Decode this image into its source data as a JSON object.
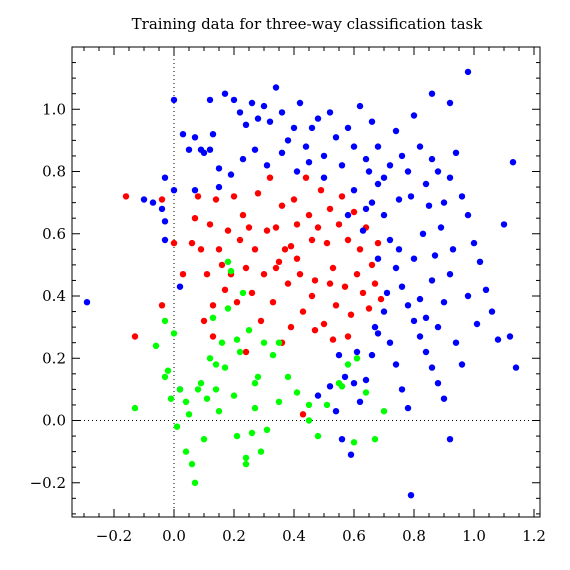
{
  "chart_data": {
    "type": "scatter",
    "title": "Training data for three-way classification task",
    "xlabel": "",
    "ylabel": "",
    "xlim": [
      -0.34,
      1.22
    ],
    "ylim": [
      -0.31,
      1.2
    ],
    "x_ticks": [
      -0.2,
      0.0,
      0.2,
      0.4,
      0.6,
      0.8,
      1.0,
      1.2
    ],
    "x_tick_labels": [
      "−0.2",
      "0.0",
      "0.2",
      "0.4",
      "0.6",
      "0.8",
      "1.0",
      "1.2"
    ],
    "y_ticks": [
      -0.2,
      0.0,
      0.2,
      0.4,
      0.6,
      0.8,
      1.0
    ],
    "y_tick_labels": [
      "−0.2",
      "0.0",
      "0.2",
      "0.4",
      "0.6",
      "0.8",
      "1.0"
    ],
    "grid": false,
    "zero_lines": "dotted",
    "legend": "none",
    "series": [
      {
        "color": "#ff0000",
        "points": [
          [
            -0.16,
            0.72
          ],
          [
            -0.13,
            0.27
          ],
          [
            -0.04,
            0.71
          ],
          [
            -0.04,
            0.37
          ],
          [
            0.0,
            0.57
          ],
          [
            0.03,
            0.47
          ],
          [
            0.06,
            0.57
          ],
          [
            0.07,
            0.65
          ],
          [
            0.08,
            0.72
          ],
          [
            0.09,
            0.55
          ],
          [
            0.1,
            0.32
          ],
          [
            0.11,
            0.47
          ],
          [
            0.12,
            0.63
          ],
          [
            0.13,
            0.37
          ],
          [
            0.13,
            0.27
          ],
          [
            0.14,
            0.71
          ],
          [
            0.15,
            0.55
          ],
          [
            0.16,
            0.5
          ],
          [
            0.17,
            0.42
          ],
          [
            0.18,
            0.61
          ],
          [
            0.19,
            0.47
          ],
          [
            0.2,
            0.72
          ],
          [
            0.21,
            0.38
          ],
          [
            0.22,
            0.58
          ],
          [
            0.23,
            0.66
          ],
          [
            0.24,
            0.49
          ],
          [
            0.25,
            0.62
          ],
          [
            0.26,
            0.41
          ],
          [
            0.27,
            0.55
          ],
          [
            0.28,
            0.73
          ],
          [
            0.3,
            0.47
          ],
          [
            0.31,
            0.61
          ],
          [
            0.32,
            0.78
          ],
          [
            0.33,
            0.38
          ],
          [
            0.34,
            0.62
          ],
          [
            0.35,
            0.51
          ],
          [
            0.36,
            0.69
          ],
          [
            0.37,
            0.55
          ],
          [
            0.38,
            0.44
          ],
          [
            0.39,
            0.3
          ],
          [
            0.4,
            0.71
          ],
          [
            0.41,
            0.63
          ],
          [
            0.42,
            0.47
          ],
          [
            0.43,
            0.35
          ],
          [
            0.44,
            0.78
          ],
          [
            0.45,
            0.66
          ],
          [
            0.46,
            0.58
          ],
          [
            0.47,
            0.45
          ],
          [
            0.48,
            0.62
          ],
          [
            0.49,
            0.74
          ],
          [
            0.5,
            0.31
          ],
          [
            0.51,
            0.57
          ],
          [
            0.52,
            0.68
          ],
          [
            0.53,
            0.49
          ],
          [
            0.54,
            0.37
          ],
          [
            0.55,
            0.63
          ],
          [
            0.56,
            0.72
          ],
          [
            0.57,
            0.43
          ],
          [
            0.58,
            0.58
          ],
          [
            0.59,
            0.34
          ],
          [
            0.6,
            0.67
          ],
          [
            0.61,
            0.47
          ],
          [
            0.62,
            0.55
          ],
          [
            0.63,
            0.41
          ],
          [
            0.64,
            0.62
          ],
          [
            0.65,
            0.36
          ],
          [
            0.66,
            0.5
          ],
          [
            0.67,
            0.44
          ],
          [
            0.68,
            0.57
          ],
          [
            0.69,
            0.39
          ],
          [
            0.34,
            0.49
          ],
          [
            0.41,
            0.52
          ],
          [
            0.47,
            0.29
          ],
          [
            0.53,
            0.26
          ],
          [
            0.58,
            0.27
          ],
          [
            0.36,
            0.25
          ],
          [
            0.24,
            0.22
          ],
          [
            0.29,
            0.32
          ],
          [
            0.43,
            0.02
          ],
          [
            0.46,
            0.4
          ],
          [
            0.52,
            0.44
          ],
          [
            0.39,
            0.56
          ]
        ]
      },
      {
        "color": "#0000ff",
        "points": [
          [
            -0.29,
            0.38
          ],
          [
            -0.1,
            0.71
          ],
          [
            -0.07,
            0.7
          ],
          [
            -0.04,
            0.68
          ],
          [
            -0.03,
            0.78
          ],
          [
            -0.03,
            0.64
          ],
          [
            -0.03,
            0.58
          ],
          [
            0.0,
            0.74
          ],
          [
            0.0,
            1.03
          ],
          [
            0.02,
            0.43
          ],
          [
            0.02,
            0.1
          ],
          [
            0.03,
            0.92
          ],
          [
            0.05,
            0.87
          ],
          [
            0.07,
            0.91
          ],
          [
            0.09,
            0.87
          ],
          [
            0.1,
            0.86
          ],
          [
            0.12,
            0.87
          ],
          [
            0.13,
            0.92
          ],
          [
            0.15,
            0.81
          ],
          [
            0.12,
            1.03
          ],
          [
            0.17,
            1.05
          ],
          [
            0.2,
            1.03
          ],
          [
            0.22,
            0.99
          ],
          [
            0.24,
            0.95
          ],
          [
            0.26,
            1.02
          ],
          [
            0.28,
            0.97
          ],
          [
            0.3,
            1.01
          ],
          [
            0.32,
            0.96
          ],
          [
            0.34,
            1.07
          ],
          [
            0.36,
            0.99
          ],
          [
            0.38,
            0.9
          ],
          [
            0.4,
            0.94
          ],
          [
            0.42,
            1.02
          ],
          [
            0.44,
            0.88
          ],
          [
            0.46,
            0.94
          ],
          [
            0.48,
            0.97
          ],
          [
            0.5,
            0.85
          ],
          [
            0.52,
            0.99
          ],
          [
            0.54,
            0.91
          ],
          [
            0.56,
            0.82
          ],
          [
            0.58,
            0.94
          ],
          [
            0.6,
            0.88
          ],
          [
            0.62,
            1.01
          ],
          [
            0.64,
            0.84
          ],
          [
            0.66,
            0.96
          ],
          [
            0.68,
            0.88
          ],
          [
            0.7,
            0.78
          ],
          [
            0.72,
            0.82
          ],
          [
            0.74,
            0.93
          ],
          [
            0.76,
            0.85
          ],
          [
            0.78,
            0.8
          ],
          [
            0.8,
            0.98
          ],
          [
            0.82,
            0.88
          ],
          [
            0.84,
            0.76
          ],
          [
            0.86,
            0.84
          ],
          [
            0.88,
            0.8
          ],
          [
            0.9,
            0.7
          ],
          [
            0.92,
            0.78
          ],
          [
            0.94,
            0.86
          ],
          [
            0.96,
            0.72
          ],
          [
            0.98,
            0.66
          ],
          [
            1.0,
            0.57
          ],
          [
            1.02,
            0.51
          ],
          [
            1.04,
            0.42
          ],
          [
            1.06,
            0.35
          ],
          [
            1.08,
            0.26
          ],
          [
            1.1,
            0.63
          ],
          [
            1.12,
            0.27
          ],
          [
            1.14,
            0.17
          ],
          [
            1.13,
            0.83
          ],
          [
            0.98,
            1.12
          ],
          [
            0.92,
            1.02
          ],
          [
            0.86,
            1.05
          ],
          [
            0.63,
            0.61
          ],
          [
            0.66,
            0.7
          ],
          [
            0.7,
            0.66
          ],
          [
            0.72,
            0.58
          ],
          [
            0.74,
            0.49
          ],
          [
            0.76,
            0.43
          ],
          [
            0.78,
            0.37
          ],
          [
            0.8,
            0.32
          ],
          [
            0.82,
            0.27
          ],
          [
            0.84,
            0.22
          ],
          [
            0.86,
            0.17
          ],
          [
            0.88,
            0.12
          ],
          [
            0.9,
            0.07
          ],
          [
            0.92,
            -0.06
          ],
          [
            0.79,
            -0.24
          ],
          [
            0.59,
            -0.11
          ],
          [
            0.62,
            0.06
          ],
          [
            0.64,
            0.13
          ],
          [
            0.66,
            0.21
          ],
          [
            0.68,
            0.28
          ],
          [
            0.7,
            0.35
          ],
          [
            0.72,
            0.25
          ],
          [
            0.74,
            0.18
          ],
          [
            0.76,
            0.1
          ],
          [
            0.78,
            0.04
          ],
          [
            0.82,
            0.39
          ],
          [
            0.84,
            0.33
          ],
          [
            0.86,
            0.45
          ],
          [
            0.88,
            0.3
          ],
          [
            0.9,
            0.38
          ],
          [
            0.92,
            0.47
          ],
          [
            0.94,
            0.25
          ],
          [
            0.96,
            0.18
          ],
          [
            0.98,
            0.4
          ],
          [
            1.01,
            0.31
          ],
          [
            0.58,
            0.66
          ],
          [
            0.6,
            0.74
          ],
          [
            0.64,
            0.68
          ],
          [
            0.55,
            0.21
          ],
          [
            0.57,
            0.14
          ],
          [
            0.61,
            0.22
          ],
          [
            0.67,
            0.3
          ],
          [
            0.52,
            0.11
          ],
          [
            0.48,
            0.08
          ],
          [
            0.54,
            0.03
          ],
          [
            0.56,
            -0.06
          ],
          [
            0.6,
            0.12
          ],
          [
            0.68,
            0.52
          ],
          [
            0.71,
            0.41
          ],
          [
            0.75,
            0.55
          ],
          [
            0.8,
            0.52
          ],
          [
            0.83,
            0.6
          ],
          [
            0.87,
            0.53
          ],
          [
            0.85,
            0.69
          ],
          [
            0.89,
            0.62
          ],
          [
            0.93,
            0.55
          ],
          [
            0.79,
            0.72
          ],
          [
            0.75,
            0.71
          ],
          [
            0.68,
            0.76
          ],
          [
            0.65,
            0.8
          ],
          [
            0.5,
            0.78
          ],
          [
            0.45,
            0.83
          ],
          [
            0.41,
            0.8
          ],
          [
            0.36,
            0.86
          ],
          [
            0.31,
            0.82
          ],
          [
            0.27,
            0.87
          ],
          [
            0.23,
            0.84
          ],
          [
            0.19,
            0.79
          ],
          [
            0.15,
            0.75
          ],
          [
            0.07,
            0.74
          ]
        ]
      },
      {
        "color": "#00ff00",
        "points": [
          [
            -0.13,
            0.04
          ],
          [
            -0.06,
            0.24
          ],
          [
            -0.03,
            0.14
          ],
          [
            -0.03,
            0.32
          ],
          [
            -0.02,
            0.16
          ],
          [
            -0.01,
            0.07
          ],
          [
            0.0,
            0.28
          ],
          [
            0.01,
            -0.02
          ],
          [
            0.02,
            0.1
          ],
          [
            0.04,
            -0.1
          ],
          [
            0.05,
            0.02
          ],
          [
            0.06,
            -0.14
          ],
          [
            0.07,
            -0.2
          ],
          [
            0.08,
            0.1
          ],
          [
            0.1,
            -0.06
          ],
          [
            0.11,
            0.07
          ],
          [
            0.12,
            0.2
          ],
          [
            0.13,
            0.33
          ],
          [
            0.14,
            0.1
          ],
          [
            0.15,
            0.03
          ],
          [
            0.16,
            0.25
          ],
          [
            0.17,
            0.17
          ],
          [
            0.18,
            0.51
          ],
          [
            0.19,
            0.48
          ],
          [
            0.2,
            0.08
          ],
          [
            0.21,
            -0.05
          ],
          [
            0.22,
            0.22
          ],
          [
            0.23,
            0.41
          ],
          [
            0.24,
            -0.14
          ],
          [
            0.25,
            0.29
          ],
          [
            0.26,
            -0.04
          ],
          [
            0.27,
            0.04
          ],
          [
            0.28,
            0.14
          ],
          [
            0.29,
            -0.1
          ],
          [
            0.3,
            0.25
          ],
          [
            0.31,
            -0.03
          ],
          [
            0.33,
            0.21
          ],
          [
            0.35,
            0.25
          ],
          [
            0.38,
            0.14
          ],
          [
            0.41,
            0.09
          ],
          [
            0.45,
            0.0
          ],
          [
            0.48,
            -0.05
          ],
          [
            0.51,
            0.05
          ],
          [
            0.55,
            0.12
          ],
          [
            0.58,
            0.18
          ],
          [
            0.61,
            0.2
          ],
          [
            0.64,
            0.09
          ],
          [
            0.67,
            -0.06
          ],
          [
            0.7,
            0.03
          ],
          [
            0.56,
            0.11
          ],
          [
            0.6,
            -0.07
          ],
          [
            0.45,
            0.05
          ],
          [
            0.35,
            0.06
          ],
          [
            0.27,
            0.12
          ],
          [
            0.21,
            0.26
          ],
          [
            0.09,
            0.12
          ],
          [
            0.04,
            0.06
          ],
          [
            0.18,
            0.36
          ],
          [
            0.24,
            -0.12
          ],
          [
            0.14,
            0.18
          ]
        ]
      }
    ]
  }
}
